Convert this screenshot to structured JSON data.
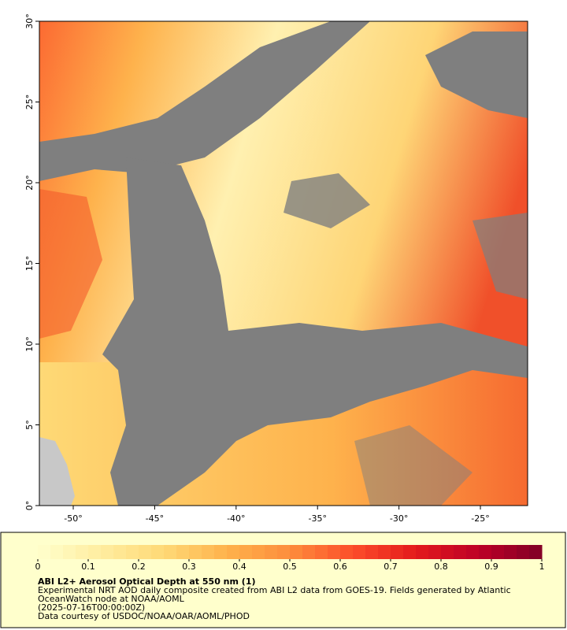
{
  "map": {
    "xlim": [
      -52.08,
      -22.1
    ],
    "ylim": [
      0,
      30
    ],
    "xticks": [
      {
        "value": -50,
        "label": "-50°"
      },
      {
        "value": -45,
        "label": "-45°"
      },
      {
        "value": -40,
        "label": "-40°"
      },
      {
        "value": -35,
        "label": "-35°"
      },
      {
        "value": -30,
        "label": "-30°"
      },
      {
        "value": -25,
        "label": "-25°"
      }
    ],
    "yticks": [
      {
        "value": 0,
        "label": "0°"
      },
      {
        "value": 5,
        "label": "5°"
      },
      {
        "value": 10,
        "label": "10°"
      },
      {
        "value": 15,
        "label": "15°"
      },
      {
        "value": 20,
        "label": "20°"
      },
      {
        "value": 25,
        "label": "25°"
      },
      {
        "value": 30,
        "label": "30°"
      }
    ]
  },
  "colorbar": {
    "lim": [
      0,
      1
    ],
    "ticks": [
      0,
      0.1,
      0.2,
      0.3,
      0.4,
      0.5,
      0.6,
      0.7,
      0.8,
      0.9,
      1
    ],
    "colors": [
      "#ffffcc",
      "#ffeda0",
      "#fed976",
      "#feb24c",
      "#fd8d3c",
      "#fc4e2a",
      "#e31a1c",
      "#bd0026",
      "#800026"
    ],
    "steps": 40
  },
  "legend": {
    "title": "ABI L2+ Aerosol Optical Depth at 550 nm (1)",
    "lines": [
      "Experimental NRT AOD daily composite created from ABI L2 data from GOES-19. Fields generated by Atlantic",
      "OceanWatch node at NOAA/AOML",
      "(2025-07-16T00:00:00Z)",
      "Data courtesy of USDOC/NOAA/OAR/AOML/PHOD"
    ]
  }
}
